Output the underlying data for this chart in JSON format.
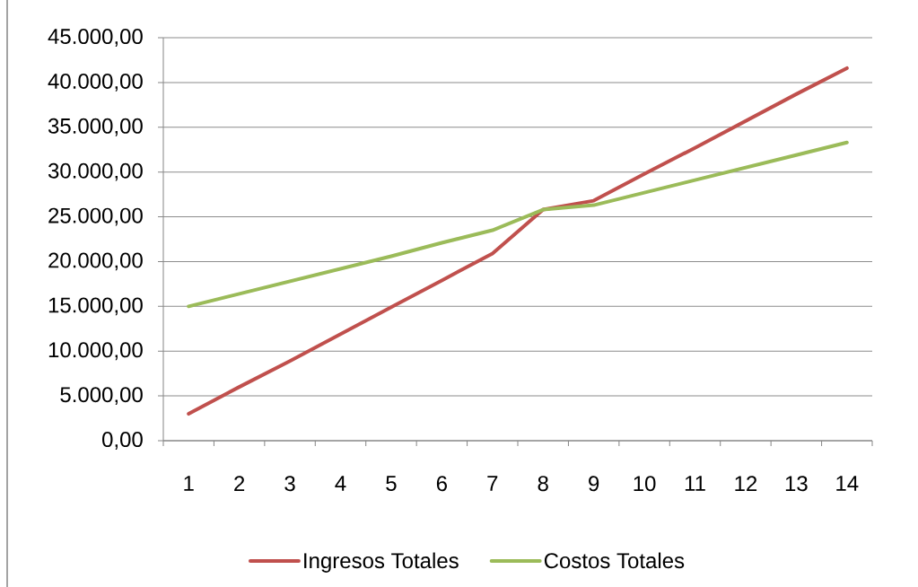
{
  "chart_data": {
    "type": "line",
    "categories": [
      "1",
      "2",
      "3",
      "4",
      "5",
      "6",
      "7",
      "8",
      "9",
      "10",
      "11",
      "12",
      "13",
      "14"
    ],
    "series": [
      {
        "name": "Ingresos Totales",
        "color": "#c0504d",
        "values": [
          3000,
          6000,
          8900,
          11900,
          14900,
          17900,
          20900,
          25800,
          26800,
          29800,
          32700,
          35700,
          38700,
          41600
        ]
      },
      {
        "name": "Costos Totales",
        "color": "#9bbb59",
        "values": [
          15000,
          16400,
          17800,
          19200,
          20600,
          22100,
          23500,
          25800,
          26300,
          27700,
          29100,
          30500,
          31900,
          33300
        ]
      }
    ],
    "ylim": [
      0,
      45000
    ],
    "yticks": [
      {
        "value": 0,
        "label": "0,00"
      },
      {
        "value": 5000,
        "label": "5.000,00"
      },
      {
        "value": 10000,
        "label": "10.000,00"
      },
      {
        "value": 15000,
        "label": "15.000,00"
      },
      {
        "value": 20000,
        "label": "20.000,00"
      },
      {
        "value": 25000,
        "label": "25.000,00"
      },
      {
        "value": 30000,
        "label": "30.000,00"
      },
      {
        "value": 35000,
        "label": "35.000,00"
      },
      {
        "value": 40000,
        "label": "40.000,00"
      },
      {
        "value": 45000,
        "label": "45.000,00"
      }
    ],
    "grid": "y",
    "legend": "bottom"
  }
}
